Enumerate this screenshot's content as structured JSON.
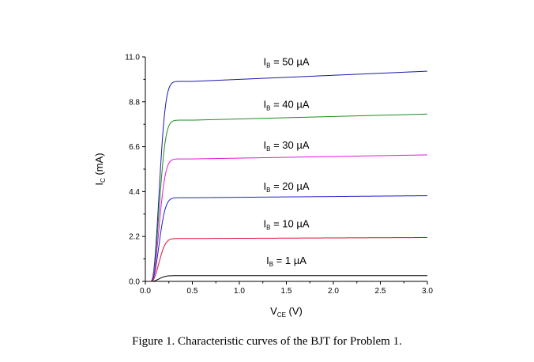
{
  "caption": "Figure 1.  Characteristic curves of the BJT for Problem 1.",
  "chart_data": {
    "type": "line",
    "title": "",
    "xlabel": {
      "main": "V",
      "sub": "CE",
      "unit": " (V)"
    },
    "ylabel": {
      "main": "I",
      "sub": "C",
      "unit": " (mA)"
    },
    "xlim": [
      0,
      3.0
    ],
    "ylim": [
      0,
      11.0
    ],
    "xticks": [
      0.0,
      0.5,
      1.0,
      1.5,
      2.0,
      2.5,
      3.0
    ],
    "xtick_labels": [
      "0.0",
      "0.5",
      "1.0",
      "1.5",
      "2.0",
      "2.5",
      "3.0"
    ],
    "yticks": [
      0.0,
      2.2,
      4.4,
      6.6,
      8.8,
      11.0
    ],
    "ytick_labels": [
      "0.0",
      "2.2",
      "4.4",
      "6.6",
      "8.8",
      "11.0"
    ],
    "series": [
      {
        "name": "IB = 50 µA",
        "label_main": "I",
        "label_sub": "B",
        "label_rest": " = 50 µA",
        "color": "#1a1aa8",
        "sat": 9.8,
        "end": 10.3,
        "label_x": 1.5,
        "label_y": 10.6
      },
      {
        "name": "IB = 40 µA",
        "label_main": "I",
        "label_sub": "B",
        "label_rest": " = 40 µA",
        "color": "#1f8c1f",
        "sat": 7.9,
        "end": 8.2,
        "label_x": 1.5,
        "label_y": 8.5
      },
      {
        "name": "IB = 30 µA",
        "label_main": "I",
        "label_sub": "B",
        "label_rest": " = 30 µA",
        "color": "#e01ad8",
        "sat": 6.0,
        "end": 6.2,
        "label_x": 1.5,
        "label_y": 6.5
      },
      {
        "name": "IB = 20 µA",
        "label_main": "I",
        "label_sub": "B",
        "label_rest": " = 20 µA",
        "color": "#1f1fcc",
        "sat": 4.1,
        "end": 4.2,
        "label_x": 1.5,
        "label_y": 4.5
      },
      {
        "name": "IB = 10 µA",
        "label_main": "I",
        "label_sub": "B",
        "label_rest": " = 10 µA",
        "color": "#e0102a",
        "sat": 2.1,
        "end": 2.15,
        "label_x": 1.5,
        "label_y": 2.65
      },
      {
        "name": "IB = 1 µA",
        "label_main": "I",
        "label_sub": "B",
        "label_rest": " = 1 µA",
        "color": "#000000",
        "sat": 0.28,
        "end": 0.28,
        "label_x": 1.5,
        "label_y": 0.85
      }
    ]
  }
}
